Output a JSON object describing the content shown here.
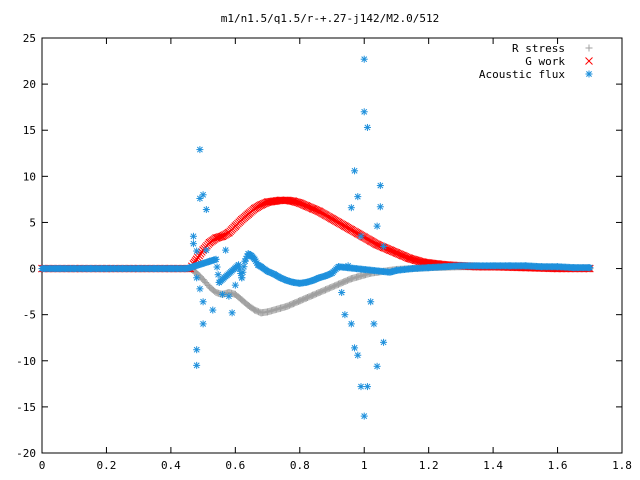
{
  "chart_data": {
    "type": "scatter",
    "title": "m1/n1.5/q1.5/r-+.27-j142/M2.0/512",
    "xlabel": "",
    "ylabel": "",
    "xlim": [
      0,
      1.8
    ],
    "ylim": [
      -20,
      25
    ],
    "xticks": [
      "0",
      "0.2",
      "0.4",
      "0.6",
      "0.8",
      "1",
      "1.2",
      "1.4",
      "1.6",
      "1.8"
    ],
    "yticks": [
      "-20",
      "-15",
      "-10",
      "-5",
      "0",
      "5",
      "10",
      "15",
      "20",
      "25"
    ],
    "legend_position": "top-right",
    "grid": false,
    "series": [
      {
        "name": "R stress",
        "marker": "plus",
        "color": "#a0a0a0",
        "points": [
          [
            0.0,
            0.0
          ],
          [
            0.1,
            0.0
          ],
          [
            0.2,
            0.0
          ],
          [
            0.3,
            0.0
          ],
          [
            0.4,
            0.0
          ],
          [
            0.46,
            0.0
          ],
          [
            0.48,
            -0.5
          ],
          [
            0.5,
            -1.2
          ],
          [
            0.52,
            -2.0
          ],
          [
            0.54,
            -2.6
          ],
          [
            0.56,
            -2.8
          ],
          [
            0.58,
            -2.6
          ],
          [
            0.6,
            -2.8
          ],
          [
            0.62,
            -3.4
          ],
          [
            0.64,
            -4.0
          ],
          [
            0.66,
            -4.5
          ],
          [
            0.68,
            -4.8
          ],
          [
            0.7,
            -4.7
          ],
          [
            0.72,
            -4.5
          ],
          [
            0.74,
            -4.3
          ],
          [
            0.76,
            -4.1
          ],
          [
            0.78,
            -3.8
          ],
          [
            0.8,
            -3.5
          ],
          [
            0.82,
            -3.2
          ],
          [
            0.84,
            -2.9
          ],
          [
            0.86,
            -2.6
          ],
          [
            0.88,
            -2.3
          ],
          [
            0.9,
            -2.0
          ],
          [
            0.92,
            -1.7
          ],
          [
            0.94,
            -1.4
          ],
          [
            0.96,
            -1.1
          ],
          [
            0.98,
            -0.9
          ],
          [
            1.0,
            -0.7
          ],
          [
            1.02,
            -0.5
          ],
          [
            1.04,
            -0.4
          ],
          [
            1.06,
            -0.3
          ],
          [
            1.08,
            -0.2
          ],
          [
            1.1,
            -0.1
          ],
          [
            1.15,
            0.0
          ],
          [
            1.2,
            0.1
          ],
          [
            1.3,
            0.2
          ],
          [
            1.4,
            0.2
          ],
          [
            1.5,
            0.2
          ],
          [
            1.6,
            0.1
          ],
          [
            1.7,
            0.0
          ]
        ]
      },
      {
        "name": "G work",
        "marker": "cross",
        "color": "#ff0000",
        "points": [
          [
            0.0,
            0.0
          ],
          [
            0.1,
            0.0
          ],
          [
            0.2,
            0.0
          ],
          [
            0.3,
            0.0
          ],
          [
            0.4,
            0.0
          ],
          [
            0.46,
            0.0
          ],
          [
            0.47,
            0.5
          ],
          [
            0.48,
            1.0
          ],
          [
            0.5,
            2.0
          ],
          [
            0.52,
            2.8
          ],
          [
            0.54,
            3.3
          ],
          [
            0.56,
            3.5
          ],
          [
            0.58,
            3.9
          ],
          [
            0.6,
            4.6
          ],
          [
            0.62,
            5.3
          ],
          [
            0.64,
            5.9
          ],
          [
            0.66,
            6.5
          ],
          [
            0.68,
            6.9
          ],
          [
            0.7,
            7.2
          ],
          [
            0.72,
            7.3
          ],
          [
            0.74,
            7.4
          ],
          [
            0.76,
            7.4
          ],
          [
            0.78,
            7.3
          ],
          [
            0.8,
            7.1
          ],
          [
            0.82,
            6.8
          ],
          [
            0.84,
            6.5
          ],
          [
            0.86,
            6.2
          ],
          [
            0.88,
            5.8
          ],
          [
            0.9,
            5.4
          ],
          [
            0.92,
            5.0
          ],
          [
            0.94,
            4.6
          ],
          [
            0.96,
            4.2
          ],
          [
            0.98,
            3.8
          ],
          [
            1.0,
            3.4
          ],
          [
            1.02,
            3.0
          ],
          [
            1.04,
            2.6
          ],
          [
            1.06,
            2.3
          ],
          [
            1.08,
            2.0
          ],
          [
            1.1,
            1.7
          ],
          [
            1.12,
            1.4
          ],
          [
            1.14,
            1.1
          ],
          [
            1.16,
            0.9
          ],
          [
            1.18,
            0.7
          ],
          [
            1.2,
            0.6
          ],
          [
            1.25,
            0.4
          ],
          [
            1.3,
            0.3
          ],
          [
            1.35,
            0.2
          ],
          [
            1.4,
            0.2
          ],
          [
            1.5,
            0.1
          ],
          [
            1.6,
            0.0
          ],
          [
            1.7,
            0.0
          ]
        ]
      },
      {
        "name": "Acoustic flux",
        "marker": "star",
        "color": "#1e90dc",
        "points": [
          [
            0.0,
            0.0
          ],
          [
            0.05,
            0.0
          ],
          [
            0.1,
            0.0
          ],
          [
            0.15,
            0.0
          ],
          [
            0.2,
            0.0
          ],
          [
            0.25,
            0.0
          ],
          [
            0.3,
            0.0
          ],
          [
            0.35,
            0.0
          ],
          [
            0.4,
            0.0
          ],
          [
            0.45,
            0.0
          ],
          [
            0.47,
            3.5
          ],
          [
            0.47,
            2.7
          ],
          [
            0.48,
            -8.8
          ],
          [
            0.48,
            -10.5
          ],
          [
            0.48,
            1.9
          ],
          [
            0.48,
            -1.0
          ],
          [
            0.49,
            7.6
          ],
          [
            0.49,
            12.9
          ],
          [
            0.49,
            -2.2
          ],
          [
            0.5,
            8.0
          ],
          [
            0.5,
            -3.6
          ],
          [
            0.5,
            -6.0
          ],
          [
            0.51,
            6.4
          ],
          [
            0.51,
            2.0
          ],
          [
            0.52,
            0.8
          ],
          [
            0.53,
            -4.5
          ],
          [
            0.54,
            1.0
          ],
          [
            0.55,
            -1.5
          ],
          [
            0.56,
            -2.8
          ],
          [
            0.57,
            2.0
          ],
          [
            0.58,
            -3.0
          ],
          [
            0.59,
            -4.8
          ],
          [
            0.6,
            -1.8
          ],
          [
            0.61,
            0.4
          ],
          [
            0.62,
            -1.0
          ],
          [
            0.63,
            0.8
          ],
          [
            0.64,
            1.6
          ],
          [
            0.65,
            1.4
          ],
          [
            0.66,
            1.0
          ],
          [
            0.67,
            0.4
          ],
          [
            0.68,
            0.2
          ],
          [
            0.7,
            -0.3
          ],
          [
            0.72,
            -0.6
          ],
          [
            0.74,
            -1.0
          ],
          [
            0.76,
            -1.3
          ],
          [
            0.78,
            -1.5
          ],
          [
            0.8,
            -1.6
          ],
          [
            0.82,
            -1.5
          ],
          [
            0.84,
            -1.3
          ],
          [
            0.86,
            -1.0
          ],
          [
            0.88,
            -0.8
          ],
          [
            0.9,
            -0.5
          ],
          [
            0.92,
            0.2
          ],
          [
            0.93,
            -2.6
          ],
          [
            0.94,
            -5.0
          ],
          [
            0.95,
            0.3
          ],
          [
            0.96,
            -6.0
          ],
          [
            0.96,
            6.6
          ],
          [
            0.97,
            -8.6
          ],
          [
            0.97,
            10.6
          ],
          [
            0.98,
            7.8
          ],
          [
            0.98,
            -9.4
          ],
          [
            0.99,
            3.5
          ],
          [
            0.99,
            -12.8
          ],
          [
            1.0,
            17.0
          ],
          [
            1.0,
            22.7
          ],
          [
            1.0,
            -16.0
          ],
          [
            1.01,
            15.3
          ],
          [
            1.01,
            -12.8
          ],
          [
            1.02,
            -3.6
          ],
          [
            1.03,
            -6.0
          ],
          [
            1.04,
            -10.6
          ],
          [
            1.04,
            4.6
          ],
          [
            1.05,
            9.0
          ],
          [
            1.05,
            6.7
          ],
          [
            1.06,
            -8.0
          ],
          [
            1.06,
            2.4
          ],
          [
            1.08,
            -0.4
          ],
          [
            1.1,
            -0.2
          ],
          [
            1.15,
            0.0
          ],
          [
            1.2,
            0.1
          ],
          [
            1.25,
            0.2
          ],
          [
            1.3,
            0.3
          ],
          [
            1.35,
            0.3
          ],
          [
            1.4,
            0.3
          ],
          [
            1.45,
            0.3
          ],
          [
            1.5,
            0.3
          ],
          [
            1.55,
            0.2
          ],
          [
            1.6,
            0.2
          ],
          [
            1.65,
            0.1
          ],
          [
            1.7,
            0.1
          ]
        ]
      }
    ]
  }
}
